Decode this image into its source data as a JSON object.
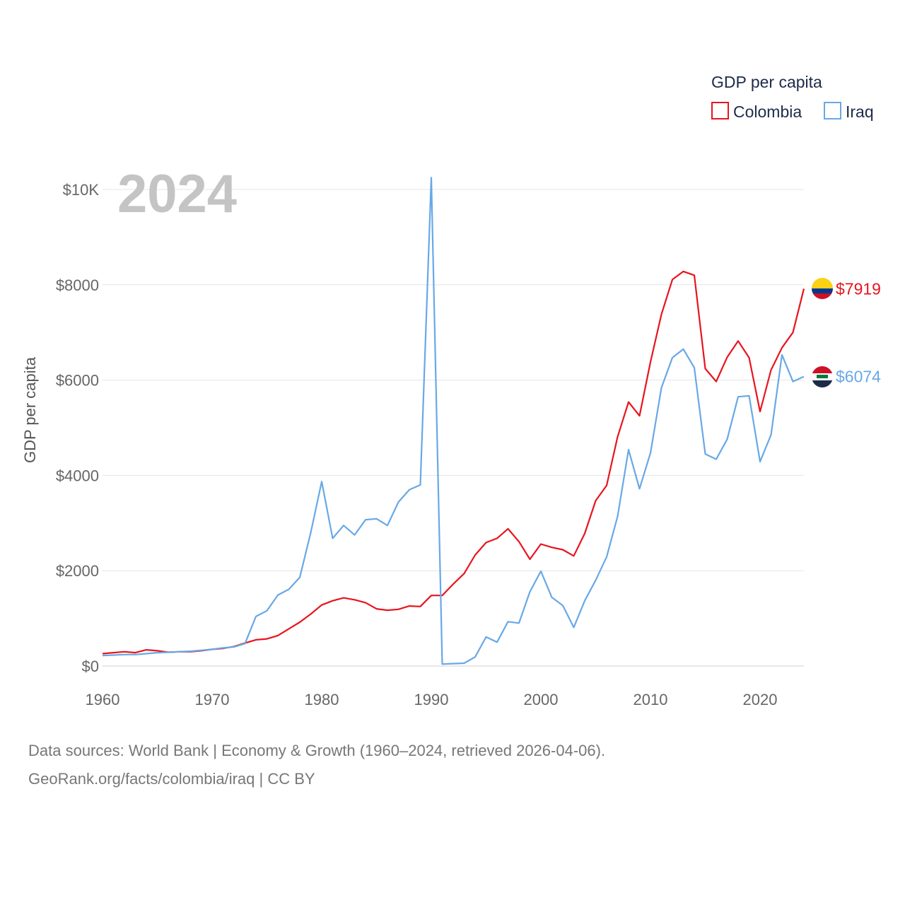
{
  "chart_data": {
    "type": "line",
    "title": "GDP per capita",
    "ylabel": "GDP per capita",
    "xlabel": "",
    "year_label": "2024",
    "xlim": [
      1960,
      2024
    ],
    "ylim": [
      0,
      10000
    ],
    "x_ticks": [
      1960,
      1970,
      1980,
      1990,
      2000,
      2010,
      2020
    ],
    "y_ticks": [
      {
        "value": 0,
        "label": "$0"
      },
      {
        "value": 2000,
        "label": "$2000"
      },
      {
        "value": 4000,
        "label": "$4000"
      },
      {
        "value": 6000,
        "label": "$6000"
      },
      {
        "value": 8000,
        "label": "$8000"
      },
      {
        "value": 10000,
        "label": "$10K"
      }
    ],
    "grid": true,
    "legend_position": "top-right",
    "x": [
      1960,
      1961,
      1962,
      1963,
      1964,
      1965,
      1966,
      1967,
      1968,
      1969,
      1970,
      1971,
      1972,
      1973,
      1974,
      1975,
      1976,
      1977,
      1978,
      1979,
      1980,
      1981,
      1982,
      1983,
      1984,
      1985,
      1986,
      1987,
      1988,
      1989,
      1990,
      1991,
      1992,
      1993,
      1994,
      1995,
      1996,
      1997,
      1998,
      1999,
      2000,
      2001,
      2002,
      2003,
      2004,
      2005,
      2006,
      2007,
      2008,
      2009,
      2010,
      2011,
      2012,
      2013,
      2014,
      2015,
      2016,
      2017,
      2018,
      2019,
      2020,
      2021,
      2022,
      2023,
      2024
    ],
    "series": [
      {
        "name": "Colombia",
        "color": "#e8141e",
        "end_label": "$7919",
        "flag": "colombia-flag",
        "values": [
          260,
          280,
          300,
          280,
          340,
          320,
          290,
          300,
          300,
          320,
          350,
          370,
          410,
          480,
          550,
          570,
          640,
          780,
          920,
          1090,
          1280,
          1370,
          1430,
          1390,
          1330,
          1200,
          1170,
          1190,
          1260,
          1250,
          1480,
          1480,
          1720,
          1940,
          2330,
          2590,
          2680,
          2880,
          2610,
          2240,
          2560,
          2490,
          2440,
          2310,
          2780,
          3470,
          3790,
          4810,
          5540,
          5250,
          6380,
          7380,
          8110,
          8280,
          8200,
          6240,
          5970,
          6480,
          6820,
          6470,
          5340,
          6210,
          6680,
          7000,
          7919
        ]
      },
      {
        "name": "Iraq",
        "color": "#68a8e6",
        "end_label": "$6074",
        "flag": "iraq-flag",
        "values": [
          220,
          230,
          240,
          240,
          260,
          280,
          290,
          300,
          310,
          330,
          350,
          380,
          400,
          470,
          1040,
          1160,
          1490,
          1610,
          1860,
          2800,
          3870,
          2680,
          2950,
          2750,
          3070,
          3090,
          2950,
          3440,
          3700,
          3800,
          10250,
          40,
          50,
          60,
          190,
          610,
          500,
          930,
          900,
          1560,
          1990,
          1440,
          1270,
          810,
          1370,
          1800,
          2290,
          3140,
          4540,
          3720,
          4470,
          5840,
          6470,
          6650,
          6260,
          4450,
          4340,
          4760,
          5650,
          5670,
          4290,
          4850,
          6530,
          5970,
          6074
        ]
      }
    ]
  },
  "footer": {
    "line1": "Data sources: World Bank | Economy & Growth (1960–2024, retrieved 2026-04-06).",
    "line2": "GeoRank.org/facts/colombia/iraq | CC BY"
  }
}
